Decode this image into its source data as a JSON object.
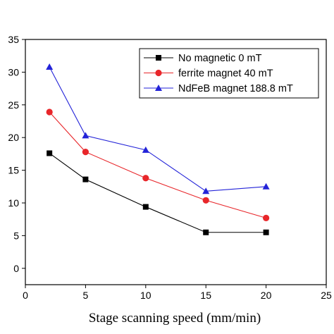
{
  "chart_data": {
    "type": "line",
    "title": "",
    "xlabel": "Stage scanning speed (mm/min)",
    "ylabel": "",
    "xlim": [
      0,
      25
    ],
    "ylim": [
      -2.5,
      35
    ],
    "xticks": [
      0,
      5,
      10,
      15,
      20,
      25
    ],
    "yticks": [
      0,
      5,
      10,
      15,
      20,
      25,
      30,
      35
    ],
    "grid": false,
    "legend_position": "top-right",
    "x": [
      2,
      5,
      10,
      15,
      20
    ],
    "series": [
      {
        "name": "No magnetic 0 mT",
        "values": [
          17.6,
          13.6,
          9.4,
          5.5,
          5.5
        ],
        "color": "#000000",
        "marker": "square"
      },
      {
        "name": "ferrite magnet 40 mT",
        "values": [
          23.9,
          17.8,
          13.8,
          10.4,
          7.7
        ],
        "color": "#e8262a",
        "marker": "circle"
      },
      {
        "name": "NdFeB magnet 188.8 mT",
        "values": [
          30.8,
          20.3,
          18.1,
          11.8,
          12.5
        ],
        "color": "#2323d8",
        "marker": "triangle"
      }
    ]
  }
}
